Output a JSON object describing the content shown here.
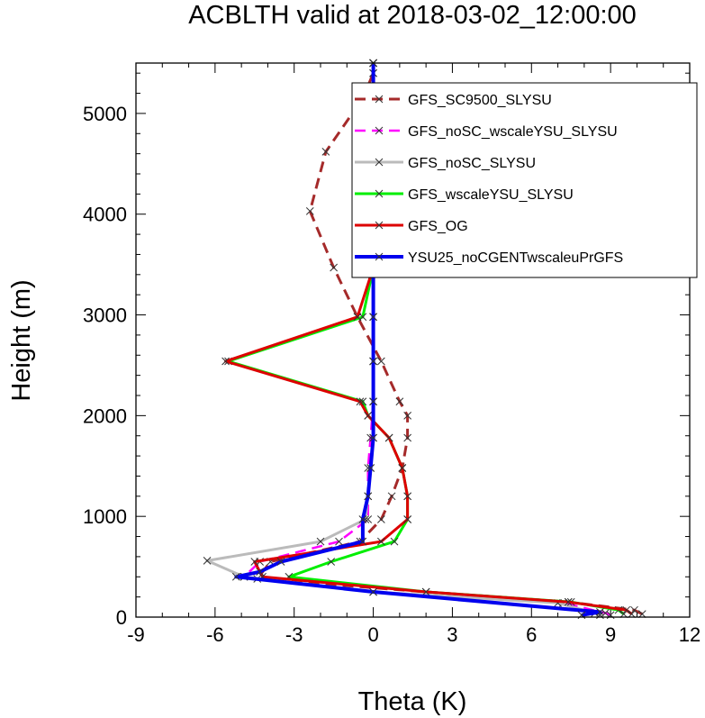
{
  "chart_data": {
    "type": "line",
    "title": "ACBLTH valid at 2018-03-02_12:00:00",
    "xlabel": "Theta (K)",
    "ylabel": "Height (m)",
    "xlim": [
      -9,
      12
    ],
    "ylim": [
      0,
      5500
    ],
    "xticks": [
      "-9",
      "-6",
      "-3",
      "0",
      "3",
      "6",
      "9",
      "12"
    ],
    "yticks": [
      "0",
      "1000",
      "2000",
      "3000",
      "4000",
      "5000"
    ],
    "legend_position": "top-right",
    "series": [
      {
        "name": "GFS_SC9500_SLYSU",
        "color": "#a52a2a",
        "dash": "12,7",
        "width": 3,
        "x": [
          10.2,
          9.9,
          7.4,
          2.0,
          -4.4,
          -3.9,
          -0.5,
          0.3,
          0.7,
          1.1,
          1.3,
          1.3,
          1.0,
          0.3,
          -0.6,
          -1.5,
          -2.4,
          -1.8,
          -0.4,
          0,
          0
        ],
        "y": [
          30,
          70,
          150,
          250,
          380,
          550,
          750,
          970,
          1200,
          1480,
          1780,
          2000,
          2140,
          2540,
          2980,
          3470,
          4030,
          4620,
          5150,
          5400,
          5500
        ]
      },
      {
        "name": "GFS_noSC_wscaleYSU_SLYSU",
        "color": "#ff00ff",
        "dash": "12,7",
        "width": 2.5,
        "x": [
          9.0,
          8.8,
          7.2,
          0.0,
          -4.9,
          -4.3,
          -1.3,
          -0.2,
          -0.2,
          -0.2,
          -0.1,
          0.0,
          0.0,
          0.0,
          0.0,
          0.0,
          0.0,
          0.0,
          0.0,
          0.0
        ],
        "y": [
          20,
          40,
          140,
          250,
          400,
          550,
          750,
          970,
          1200,
          1480,
          1780,
          2140,
          2540,
          2980,
          3470,
          4030,
          4620,
          5150,
          5400,
          5500
        ]
      },
      {
        "name": "GFS_noSC_SLYSU",
        "color": "#bbbbbb",
        "dash": "",
        "width": 3,
        "x": [
          8.6,
          8.4,
          7.0,
          0.0,
          -4.9,
          -6.3,
          -2.0,
          -0.3,
          -0.2,
          -0.1,
          0.0,
          0.0,
          0.0,
          0.0,
          0.0,
          0.0,
          0.0,
          0.0,
          0.0,
          0.0
        ],
        "y": [
          20,
          40,
          140,
          250,
          400,
          560,
          750,
          970,
          1200,
          1480,
          1780,
          2140,
          2540,
          2980,
          3470,
          4030,
          4620,
          5150,
          5400,
          5500
        ]
      },
      {
        "name": "GFS_wscaleYSU_SLYSU",
        "color": "#00ee00",
        "dash": "",
        "width": 3,
        "x": [
          9.5,
          9.3,
          7.5,
          2.0,
          -3.2,
          -1.6,
          0.8,
          1.3,
          1.3,
          1.1,
          0.6,
          -0.2,
          -0.4,
          -5.5,
          -0.4,
          0.0,
          0.0,
          0.0,
          0.0,
          0.0
        ],
        "y": [
          30,
          70,
          150,
          250,
          400,
          550,
          750,
          970,
          1200,
          1480,
          1780,
          2000,
          2140,
          2540,
          2980,
          3470,
          4030,
          4620,
          5150,
          5500
        ]
      },
      {
        "name": "GFS_OG",
        "color": "#dd0000",
        "dash": "",
        "width": 3,
        "x": [
          9.8,
          9.6,
          7.4,
          2.0,
          -4.2,
          -4.5,
          0.3,
          1.3,
          1.3,
          1.1,
          0.6,
          -0.2,
          -0.5,
          -5.6,
          -0.6,
          0.0,
          0.0,
          0.0,
          0.0,
          0.0
        ],
        "y": [
          30,
          70,
          150,
          250,
          400,
          550,
          750,
          970,
          1200,
          1480,
          1780,
          2000,
          2140,
          2540,
          2980,
          3470,
          4030,
          4620,
          5150,
          5500
        ]
      },
      {
        "name": "YSU25_noCGENTwscaleuPrGFS",
        "color": "#0000ee",
        "dash": "",
        "width": 4,
        "x": [
          7.9,
          8.6,
          0.0,
          -5.2,
          -4.3,
          -3.5,
          -0.4,
          -0.4,
          -0.2,
          -0.1,
          0.0,
          0.0,
          0.0,
          0.0,
          0.0,
          0.0,
          0.0,
          0.0,
          0.0
        ],
        "y": [
          20,
          50,
          250,
          400,
          450,
          550,
          750,
          970,
          1200,
          1480,
          1780,
          2140,
          2540,
          2980,
          3470,
          4030,
          4620,
          5150,
          5500
        ]
      }
    ]
  }
}
